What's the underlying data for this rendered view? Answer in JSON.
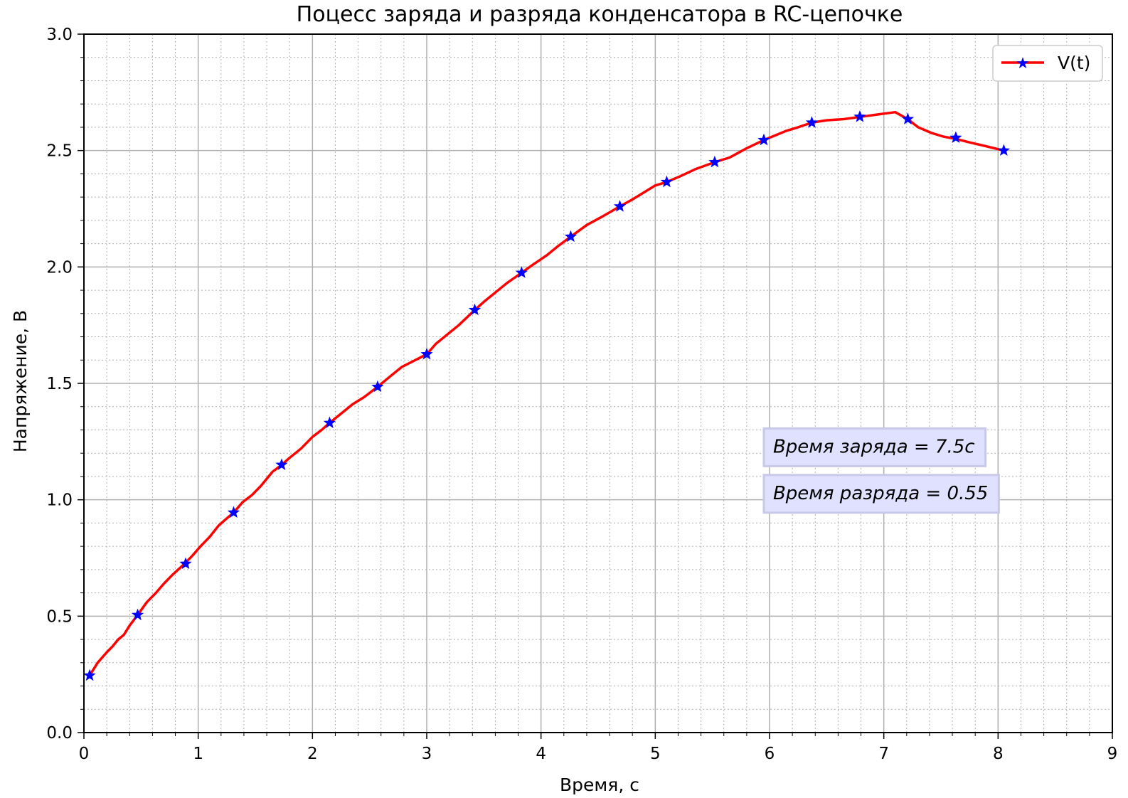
{
  "colors": {
    "line": "#ff0000",
    "markers": "#0000ff",
    "major_grid": "#b0b0b0",
    "minor_grid": "#b0b0b0",
    "annotation_bg": "#e0e0ff",
    "annotation_border": "#c8c8e8"
  },
  "chart_data": {
    "type": "line",
    "title": "Поцесс заряда и разряда конденсатора в RC-цепочке",
    "xlabel": "Время, с",
    "ylabel": "Напряжение, В",
    "xlim": [
      0,
      9
    ],
    "ylim": [
      0,
      3.0
    ],
    "x_ticks": [
      0,
      1,
      2,
      3,
      4,
      5,
      6,
      7,
      8,
      9
    ],
    "x_tick_labels": [
      "0",
      "1",
      "2",
      "3",
      "4",
      "5",
      "6",
      "7",
      "8",
      "9"
    ],
    "y_ticks": [
      0,
      0.5,
      1.0,
      1.5,
      2.0,
      2.5,
      3.0
    ],
    "y_tick_labels": [
      "0.0",
      "0.5",
      "1.0",
      "1.5",
      "2.0",
      "2.5",
      "3.0"
    ],
    "grid": "major solid, minor dotted",
    "legend_position": "top-right",
    "series": [
      {
        "name": "V(t)",
        "marker": "star",
        "x": [
          0.05,
          0.12,
          0.2,
          0.25,
          0.3,
          0.35,
          0.4,
          0.47,
          0.55,
          0.63,
          0.7,
          0.78,
          0.88,
          0.95,
          1.02,
          1.1,
          1.18,
          1.25,
          1.31,
          1.39,
          1.47,
          1.55,
          1.65,
          1.73,
          1.8,
          1.9,
          2.0,
          2.08,
          2.15,
          2.25,
          2.35,
          2.45,
          2.57,
          2.68,
          2.78,
          2.9,
          3.0,
          3.08,
          3.18,
          3.28,
          3.42,
          3.5,
          3.6,
          3.7,
          3.83,
          3.93,
          4.05,
          4.15,
          4.26,
          4.4,
          4.55,
          4.69,
          4.8,
          4.9,
          5.0,
          5.1,
          5.22,
          5.35,
          5.52,
          5.65,
          5.8,
          5.95,
          6.05,
          6.15,
          6.25,
          6.37,
          6.5,
          6.65,
          6.8,
          6.95,
          7.1,
          7.21,
          7.3,
          7.42,
          7.52,
          7.63,
          7.75,
          7.88,
          8.05
        ],
        "y": [
          0.245,
          0.3,
          0.345,
          0.37,
          0.4,
          0.42,
          0.46,
          0.505,
          0.56,
          0.6,
          0.64,
          0.68,
          0.725,
          0.76,
          0.8,
          0.84,
          0.89,
          0.92,
          0.945,
          0.99,
          1.02,
          1.06,
          1.12,
          1.15,
          1.18,
          1.22,
          1.27,
          1.3,
          1.33,
          1.37,
          1.41,
          1.44,
          1.485,
          1.53,
          1.57,
          1.6,
          1.625,
          1.67,
          1.71,
          1.75,
          1.815,
          1.85,
          1.89,
          1.93,
          1.975,
          2.01,
          2.05,
          2.09,
          2.13,
          2.18,
          2.22,
          2.26,
          2.29,
          2.32,
          2.35,
          2.365,
          2.39,
          2.42,
          2.45,
          2.47,
          2.51,
          2.545,
          2.565,
          2.585,
          2.6,
          2.62,
          2.63,
          2.635,
          2.645,
          2.655,
          2.665,
          2.635,
          2.6,
          2.575,
          2.56,
          2.55,
          2.535,
          2.52,
          2.5
        ]
      }
    ],
    "marker_points": {
      "x": [
        0.05,
        0.47,
        0.89,
        1.31,
        1.73,
        2.15,
        2.57,
        3.0,
        3.42,
        3.83,
        4.26,
        4.69,
        5.1,
        5.52,
        5.95,
        6.37,
        6.79,
        7.21,
        7.63,
        8.05
      ],
      "y": [
        0.245,
        0.505,
        0.725,
        0.945,
        1.15,
        1.33,
        1.485,
        1.625,
        1.815,
        1.975,
        2.13,
        2.26,
        2.365,
        2.45,
        2.545,
        2.62,
        2.645,
        2.635,
        2.555,
        2.5
      ]
    },
    "annotations": [
      {
        "text": "Время заряда = 7.5c",
        "x": 5.95,
        "y": 1.23
      },
      {
        "text": "Время разряда = 0.55",
        "x": 5.95,
        "y": 1.03
      }
    ]
  }
}
